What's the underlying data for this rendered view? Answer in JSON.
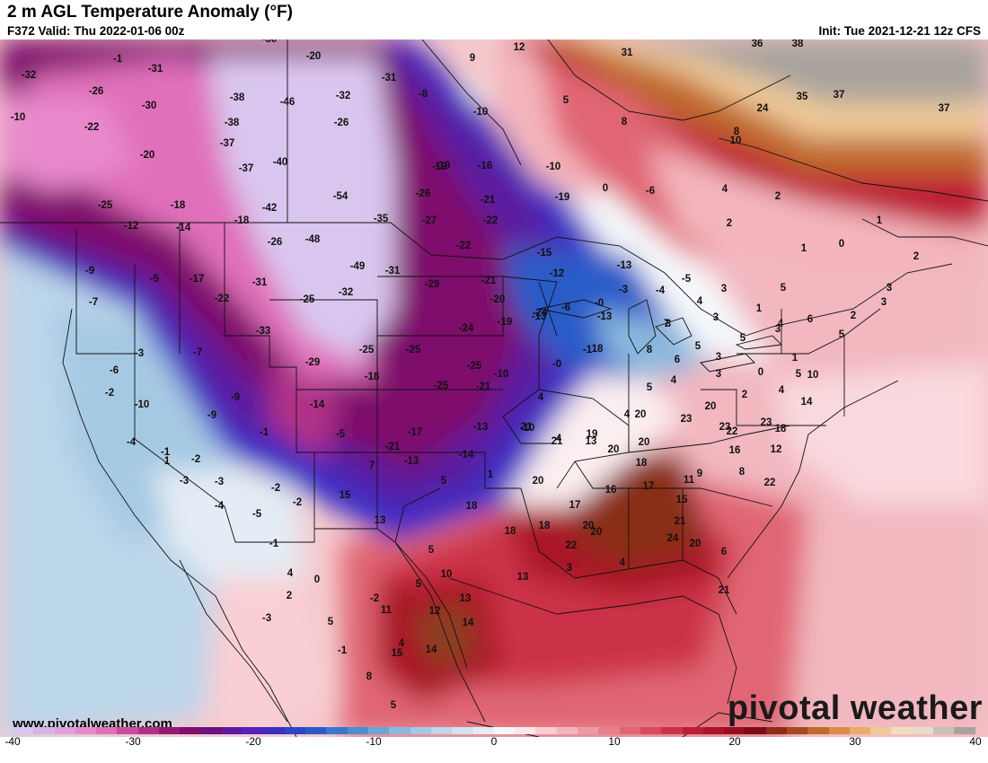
{
  "header": {
    "title": "2 m AGL Temperature Anomaly (°F)",
    "valid": "F372 Valid: Thu 2022-01-06 00z",
    "init": "Init: Tue 2021-12-21 12z CFS"
  },
  "footer": {
    "url": "www.pivotalweather.com",
    "watermark": "pivotal weather"
  },
  "legend": {
    "min": -40,
    "max": 40,
    "ticks": [
      "-40",
      "-30",
      "-20",
      "-10",
      "0",
      "10",
      "20",
      "30",
      "40"
    ],
    "colors": [
      "#d9c6ee",
      "#d7b3e6",
      "#e09fd8",
      "#e889cc",
      "#e06fb9",
      "#c94c9e",
      "#b03088",
      "#951a74",
      "#7e0f6c",
      "#6b127e",
      "#5c1aa0",
      "#5224b8",
      "#3a2ec4",
      "#2b44c9",
      "#2a5cc8",
      "#3a78cc",
      "#4a8fd2",
      "#6aa5d8",
      "#8ab8de",
      "#a6c9e3",
      "#bcd6ea",
      "#d1e2ef",
      "#e4ecf5",
      "#f5f8fb",
      "#fde9ec",
      "#f9cfd4",
      "#f4b5bd",
      "#ee9aa4",
      "#e8808b",
      "#e06673",
      "#d64b5c",
      "#cc3347",
      "#be1f34",
      "#a91526",
      "#930f1d",
      "#7c0b16",
      "#8a2e14",
      "#a24b1c",
      "#c06a2c",
      "#d88c44",
      "#e6ad6a",
      "#efc997",
      "#f3ddc0",
      "#e8dccc",
      "#c9c0b4",
      "#a8a39c"
    ]
  },
  "values": [
    "-30",
    "-32",
    "-31",
    "-26",
    "-30",
    "-22",
    "-38",
    "-20",
    "-38",
    "-37",
    "-37",
    "-40",
    "-46",
    "-18",
    "-25",
    "-12",
    "-14",
    "-42",
    "-54",
    "-48",
    "-18",
    "-9",
    "-5",
    "-17",
    "-7",
    "-22",
    "-31",
    "-26",
    "-35",
    "-25",
    "-32",
    "-49",
    "-31",
    "-33",
    "-25",
    "-29",
    "-25",
    "-18",
    "-9",
    "-3",
    "-7",
    "-6",
    "-2",
    "-10",
    "-14",
    "-9",
    "-1",
    "1",
    "-2",
    "-5",
    "-4",
    "-1",
    "-3",
    "-2",
    "-3",
    "-4",
    "-5",
    "-2",
    "-1",
    "4",
    "2",
    "5",
    "-3",
    "-1",
    "0",
    "-2",
    "-1",
    "-10",
    "-30",
    "-20",
    "-26",
    "-31",
    "-19",
    "-32",
    "-8",
    "-10",
    "-16",
    "-10",
    "9",
    "12",
    "5",
    "8",
    "31",
    "36",
    "38",
    "35",
    "37",
    "37",
    "24",
    "10",
    "8",
    "-19",
    "-26",
    "-21",
    "-27",
    "-22",
    "-22",
    "-21",
    "-29",
    "-20",
    "-19",
    "-24",
    "-25",
    "-21",
    "-25",
    "-24",
    "-13",
    "-17",
    "-21",
    "-13",
    "-14",
    "-10",
    "-15",
    "-12",
    "-13",
    "-19",
    "-3",
    "-4",
    "-5",
    "-6",
    "-0",
    "-13",
    "-0",
    "4",
    "-1",
    "0",
    "-13",
    "-6",
    "5",
    "1",
    "-10",
    "4",
    "13",
    "18",
    "3",
    "2",
    "4",
    "3",
    "2",
    "1",
    "0",
    "1",
    "2",
    "3",
    "1",
    "5",
    "4",
    "3",
    "4",
    "5",
    "3",
    "2",
    "3",
    "3",
    "5",
    "6",
    "7",
    "8",
    "6",
    "5",
    "4",
    "5",
    "4",
    "3",
    "2",
    "0",
    "4",
    "5",
    "1",
    "10",
    "14",
    "18",
    "20",
    "23",
    "23",
    "22",
    "22",
    "23",
    "21",
    "21",
    "19",
    "20",
    "20",
    "20",
    "18",
    "17",
    "16",
    "11",
    "15",
    "18",
    "17",
    "20",
    "22",
    "18",
    "20",
    "16",
    "12",
    "8",
    "9",
    "20",
    "21",
    "24",
    "20",
    "21",
    "18",
    "13",
    "15",
    "7",
    "5",
    "5",
    "10",
    "13",
    "12",
    "14",
    "14",
    "11",
    "15",
    "8",
    "5",
    "4",
    "13",
    "3",
    "4",
    "6"
  ]
}
